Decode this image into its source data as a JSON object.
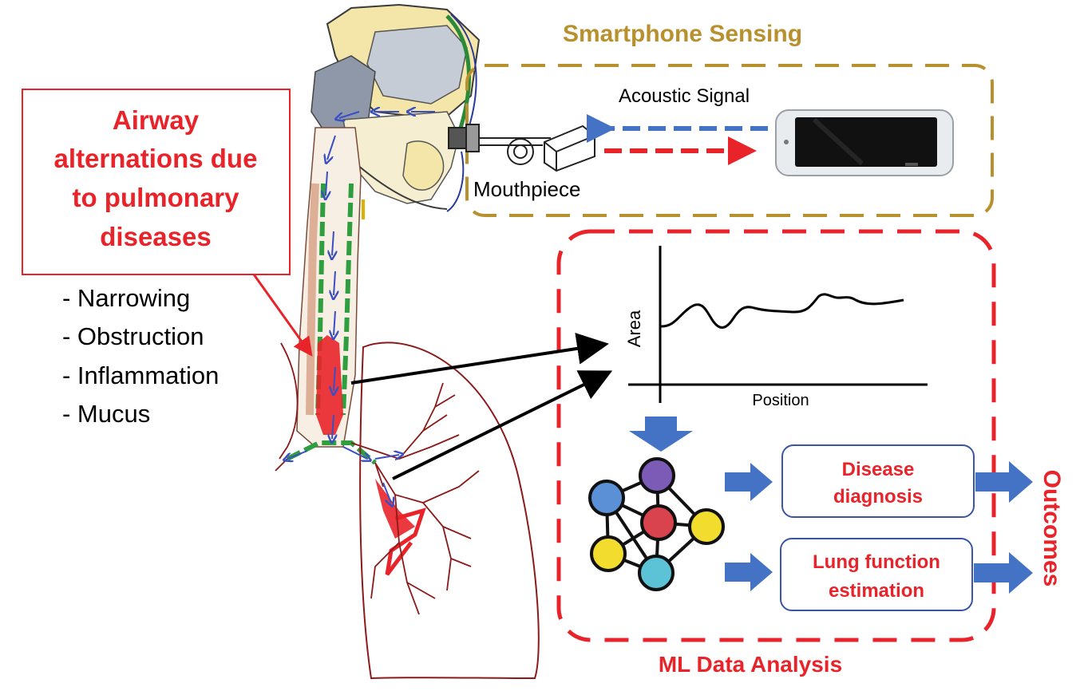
{
  "smartphone_sensing": {
    "title": "Smartphone Sensing",
    "acoustic_signal_label": "Acoustic Signal",
    "mouthpiece_label": "Mouthpiece"
  },
  "airway_box": {
    "title_lines": [
      "Airway",
      "alternations due",
      "to pulmonary",
      "diseases"
    ]
  },
  "conditions": [
    "- Narrowing",
    "- Obstruction",
    "- Inflammation",
    "- Mucus"
  ],
  "plot": {
    "ylabel": "Area",
    "xlabel": "Position"
  },
  "outcome_boxes": [
    {
      "lines": [
        "Disease",
        "diagnosis"
      ]
    },
    {
      "lines": [
        "Lung function",
        "estimation"
      ]
    }
  ],
  "outcomes_label": "Outcomes",
  "ml_title": "ML Data Analysis",
  "colors": {
    "gold": "#b8902e",
    "red": "#e8232a",
    "blue": "#4472c4",
    "dark_red": "#8b1a1a",
    "green": "#2e9e3e"
  },
  "network_nodes": [
    {
      "color": "#f2dc2e"
    },
    {
      "color": "#7b5bb5"
    },
    {
      "color": "#5b8fd6"
    },
    {
      "color": "#d9434e"
    },
    {
      "color": "#f2dc2e"
    },
    {
      "color": "#f2dc2e"
    },
    {
      "color": "#5cc3d6"
    }
  ]
}
